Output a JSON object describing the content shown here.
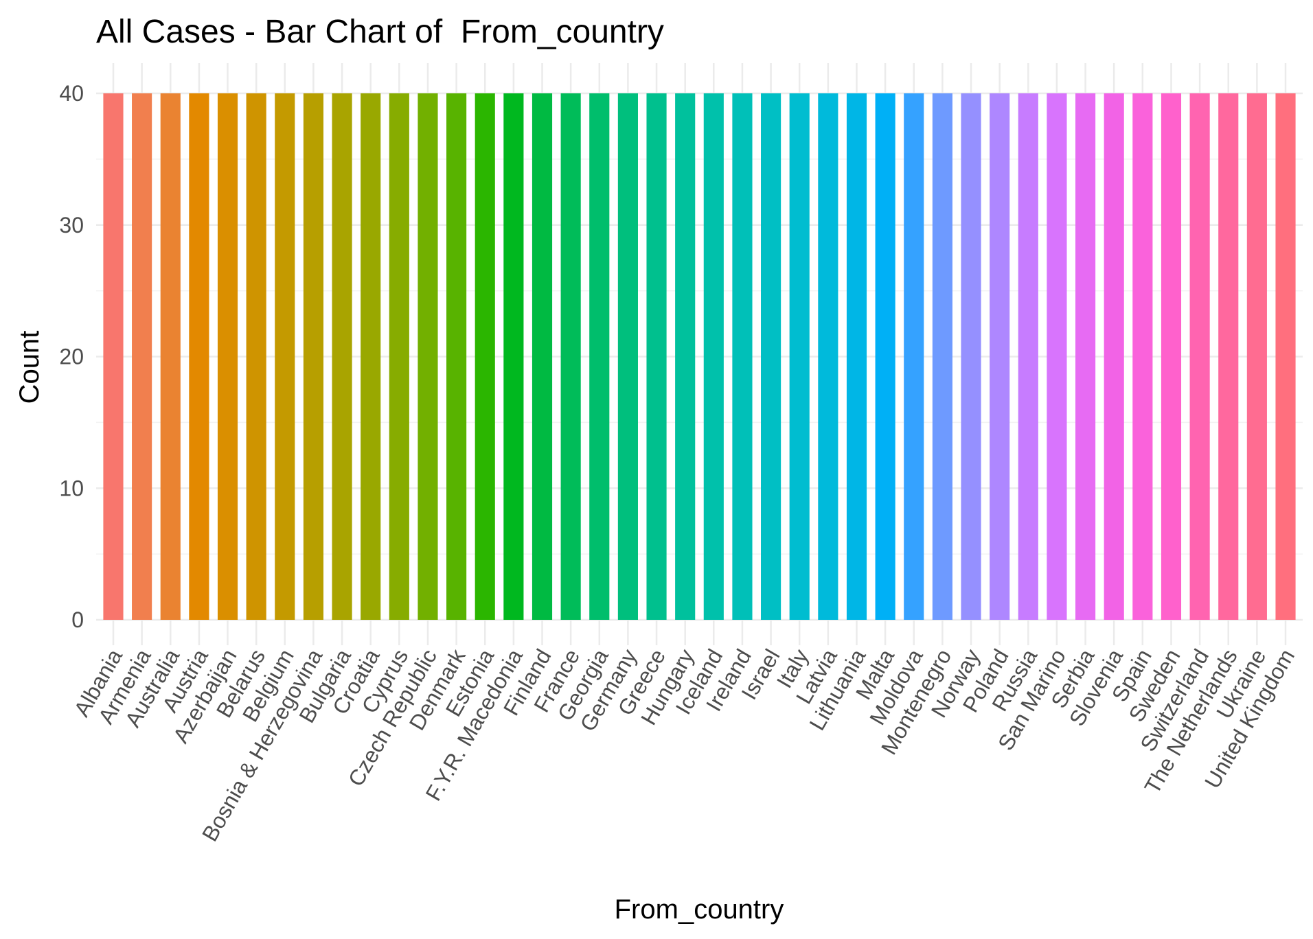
{
  "chart_data": {
    "type": "bar",
    "title": "All Cases - Bar Chart of  From_country",
    "xlabel": "From_country",
    "ylabel": "Count",
    "ylim": [
      0,
      40
    ],
    "yticks": [
      0,
      10,
      20,
      30,
      40
    ],
    "grid": true,
    "legend": "none",
    "categories": [
      "Albania",
      "Armenia",
      "Australia",
      "Austria",
      "Azerbaijan",
      "Belarus",
      "Belgium",
      "Bosnia & Herzegovina",
      "Bulgaria",
      "Croatia",
      "Cyprus",
      "Czech Republic",
      "Denmark",
      "Estonia",
      "F.Y.R. Macedonia",
      "Finland",
      "France",
      "Georgia",
      "Germany",
      "Greece",
      "Hungary",
      "Iceland",
      "Ireland",
      "Israel",
      "Italy",
      "Latvia",
      "Lithuania",
      "Malta",
      "Moldova",
      "Montenegro",
      "Norway",
      "Poland",
      "Russia",
      "San Marino",
      "Serbia",
      "Slovenia",
      "Spain",
      "Sweden",
      "Switzerland",
      "The Netherlands",
      "Ukraine",
      "United Kingdom"
    ],
    "values": [
      40,
      40,
      40,
      40,
      40,
      40,
      40,
      40,
      40,
      40,
      40,
      40,
      40,
      40,
      40,
      40,
      40,
      40,
      40,
      40,
      40,
      40,
      40,
      40,
      40,
      40,
      40,
      40,
      40,
      40,
      40,
      40,
      40,
      40,
      40,
      40,
      40,
      40,
      40,
      40,
      40,
      40
    ],
    "colors": [
      "#F8766D",
      "#F17F4E",
      "#EA8331",
      "#E38900",
      "#DA8F00",
      "#CF9400",
      "#C49A00",
      "#B79F00",
      "#A9A400",
      "#99A800",
      "#87AC00",
      "#72B000",
      "#58B300",
      "#2BB600",
      "#00B81F",
      "#00BA42",
      "#00BC59",
      "#00BE6C",
      "#00BF7D",
      "#00C08E",
      "#00C19D",
      "#00C1AB",
      "#00C0B8",
      "#00BFC4",
      "#00BDD0",
      "#00BADB",
      "#00B6E6",
      "#00B0F6",
      "#35A2FF",
      "#6E9AFF",
      "#9590FF",
      "#AE87FF",
      "#C77CFF",
      "#D874FD",
      "#E76BF3",
      "#F263E6",
      "#FA62DB",
      "#FF61CC",
      "#FF64B0",
      "#FF689E",
      "#FF6C91",
      "#FF6F7E"
    ]
  }
}
